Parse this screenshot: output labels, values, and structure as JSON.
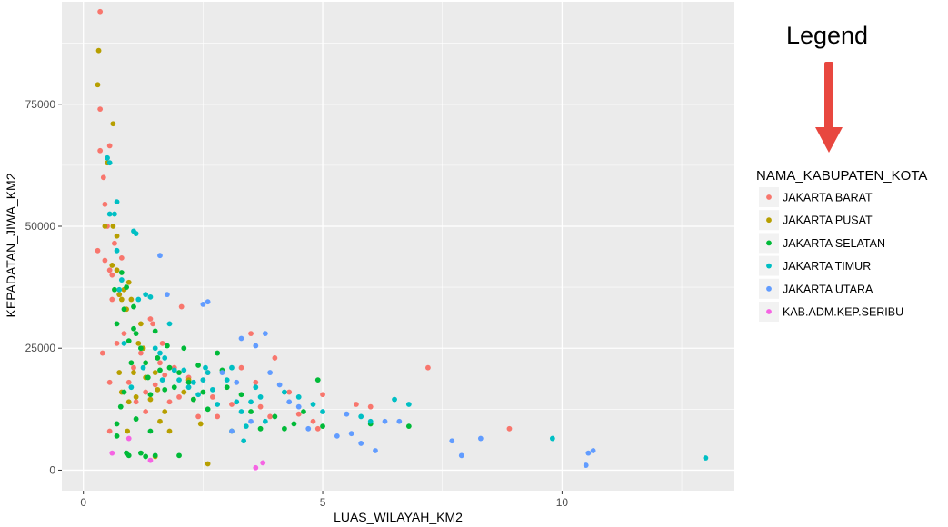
{
  "chart_data": {
    "type": "scatter",
    "title": "",
    "xlabel": "LUAS_WILAYAH_KM2",
    "ylabel": "KEPADATAN_JIWA_KM2",
    "xlim": [
      -0.45,
      13.6
    ],
    "ylim": [
      -4200,
      96000
    ],
    "x_ticks": [
      0,
      5,
      10
    ],
    "y_ticks": [
      0,
      25000,
      50000,
      75000
    ],
    "x_tick_labels": [
      "0",
      "5",
      "10"
    ],
    "y_tick_labels": [
      "0",
      "25000",
      "50000",
      "75000"
    ],
    "grid": true,
    "legend_title": "NAMA_KABUPATEN_KOTA",
    "legend_position": "right",
    "annotation": {
      "text": "Legend",
      "arrow_color": "#e8473f"
    },
    "series": [
      {
        "name": "JAKARTA BARAT",
        "color": "#F8766D",
        "points": [
          [
            0.35,
            94000
          ],
          [
            0.35,
            74000
          ],
          [
            0.35,
            65500
          ],
          [
            0.3,
            45000
          ],
          [
            0.42,
            60000
          ],
          [
            0.45,
            54500
          ],
          [
            0.55,
            66500
          ],
          [
            0.45,
            43000
          ],
          [
            0.5,
            50000
          ],
          [
            0.55,
            41000
          ],
          [
            0.6,
            35000
          ],
          [
            0.65,
            46500
          ],
          [
            0.6,
            40000
          ],
          [
            0.4,
            24000
          ],
          [
            0.55,
            18000
          ],
          [
            0.55,
            8000
          ],
          [
            0.75,
            36000
          ],
          [
            0.8,
            43500
          ],
          [
            0.85,
            28000
          ],
          [
            0.7,
            26000
          ],
          [
            0.95,
            18000
          ],
          [
            1.05,
            21000
          ],
          [
            1.2,
            24000
          ],
          [
            1.3,
            16000
          ],
          [
            1.4,
            31000
          ],
          [
            1.45,
            30000
          ],
          [
            1.5,
            17500
          ],
          [
            1.6,
            22000
          ],
          [
            1.65,
            26000
          ],
          [
            1.7,
            19500
          ],
          [
            1.8,
            14000
          ],
          [
            1.9,
            21000
          ],
          [
            2.0,
            15000
          ],
          [
            2.05,
            33500
          ],
          [
            2.2,
            19000
          ],
          [
            2.4,
            11000
          ],
          [
            2.6,
            20000
          ],
          [
            2.7,
            15000
          ],
          [
            2.8,
            11000
          ],
          [
            3.1,
            13500
          ],
          [
            3.3,
            21000
          ],
          [
            3.5,
            28000
          ],
          [
            3.6,
            18000
          ],
          [
            3.7,
            13000
          ],
          [
            3.9,
            11000
          ],
          [
            4.0,
            23000
          ],
          [
            4.3,
            16000
          ],
          [
            4.5,
            11500
          ],
          [
            4.8,
            10000
          ],
          [
            4.9,
            8500
          ],
          [
            5.0,
            15500
          ],
          [
            5.7,
            13500
          ],
          [
            6.0,
            13000
          ],
          [
            7.2,
            21000
          ],
          [
            8.9,
            8500
          ],
          [
            1.1,
            14000
          ],
          [
            1.3,
            12000
          ],
          [
            2.3,
            14500
          ]
        ]
      },
      {
        "name": "JAKARTA PUSAT",
        "color": "#B79F00",
        "points": [
          [
            0.32,
            86000
          ],
          [
            0.3,
            79000
          ],
          [
            0.62,
            71000
          ],
          [
            0.5,
            63000
          ],
          [
            0.45,
            50000
          ],
          [
            0.6,
            42000
          ],
          [
            0.62,
            50000
          ],
          [
            0.7,
            48000
          ],
          [
            0.7,
            41000
          ],
          [
            0.75,
            36000
          ],
          [
            0.8,
            35000
          ],
          [
            0.85,
            37000
          ],
          [
            0.9,
            33000
          ],
          [
            0.95,
            38500
          ],
          [
            1.0,
            35000
          ],
          [
            0.75,
            20000
          ],
          [
            0.8,
            16000
          ],
          [
            0.95,
            14000
          ],
          [
            1.05,
            20000
          ],
          [
            1.1,
            15000
          ],
          [
            1.15,
            26000
          ],
          [
            1.2,
            30000
          ],
          [
            1.25,
            25000
          ],
          [
            1.3,
            19000
          ],
          [
            1.4,
            14500
          ],
          [
            1.5,
            20000
          ],
          [
            1.55,
            16500
          ],
          [
            1.6,
            10000
          ],
          [
            1.7,
            12000
          ],
          [
            1.8,
            8000
          ],
          [
            2.1,
            16000
          ],
          [
            2.2,
            18500
          ],
          [
            2.45,
            9500
          ],
          [
            2.6,
            1300
          ],
          [
            1.5,
            2800
          ],
          [
            0.92,
            8000
          ]
        ]
      },
      {
        "name": "JAKARTA SELATAN",
        "color": "#00BA38",
        "points": [
          [
            0.65,
            37000
          ],
          [
            0.7,
            30000
          ],
          [
            0.8,
            40500
          ],
          [
            0.85,
            33000
          ],
          [
            0.9,
            37500
          ],
          [
            0.95,
            26500
          ],
          [
            1.0,
            22000
          ],
          [
            1.05,
            33500
          ],
          [
            1.1,
            28000
          ],
          [
            1.2,
            25000
          ],
          [
            1.3,
            22000
          ],
          [
            1.35,
            19000
          ],
          [
            1.4,
            15500
          ],
          [
            1.5,
            28500
          ],
          [
            1.55,
            23000
          ],
          [
            1.6,
            20500
          ],
          [
            1.7,
            16500
          ],
          [
            1.8,
            21000
          ],
          [
            1.9,
            17000
          ],
          [
            2.0,
            20000
          ],
          [
            2.1,
            25000
          ],
          [
            2.2,
            18000
          ],
          [
            2.3,
            14500
          ],
          [
            2.4,
            21500
          ],
          [
            2.5,
            16000
          ],
          [
            2.6,
            12500
          ],
          [
            2.8,
            24000
          ],
          [
            2.9,
            20500
          ],
          [
            3.0,
            17000
          ],
          [
            3.1,
            8000
          ],
          [
            3.3,
            15500
          ],
          [
            3.5,
            12000
          ],
          [
            3.7,
            8500
          ],
          [
            4.0,
            11000
          ],
          [
            4.2,
            8500
          ],
          [
            4.4,
            9500
          ],
          [
            4.6,
            12000
          ],
          [
            4.9,
            18500
          ],
          [
            5.0,
            9000
          ],
          [
            6.0,
            9500
          ],
          [
            6.8,
            9000
          ],
          [
            0.7,
            9500
          ],
          [
            0.85,
            16000
          ],
          [
            0.95,
            3000
          ],
          [
            1.3,
            2800
          ],
          [
            1.5,
            3000
          ],
          [
            2.0,
            3000
          ],
          [
            0.7,
            7000
          ],
          [
            1.2,
            3500
          ],
          [
            0.9,
            3500
          ],
          [
            1.1,
            10500
          ],
          [
            1.4,
            8000
          ],
          [
            0.78,
            13000
          ],
          [
            1.05,
            29000
          ],
          [
            1.75,
            25500
          ]
        ]
      },
      {
        "name": "JAKARTA TIMUR",
        "color": "#00BFC4",
        "points": [
          [
            0.5,
            64000
          ],
          [
            0.55,
            63000
          ],
          [
            0.55,
            52500
          ],
          [
            0.65,
            52500
          ],
          [
            0.7,
            55000
          ],
          [
            0.7,
            45000
          ],
          [
            0.75,
            37000
          ],
          [
            0.8,
            39000
          ],
          [
            0.85,
            26000
          ],
          [
            1.05,
            49000
          ],
          [
            1.1,
            48500
          ],
          [
            1.15,
            35000
          ],
          [
            1.3,
            36000
          ],
          [
            1.4,
            35500
          ],
          [
            1.5,
            25000
          ],
          [
            1.6,
            24000
          ],
          [
            1.7,
            23000
          ],
          [
            1.8,
            30000
          ],
          [
            1.9,
            20500
          ],
          [
            2.0,
            18500
          ],
          [
            2.1,
            20500
          ],
          [
            2.2,
            17000
          ],
          [
            2.3,
            18000
          ],
          [
            2.4,
            15500
          ],
          [
            2.5,
            18500
          ],
          [
            2.6,
            20000
          ],
          [
            2.7,
            16500
          ],
          [
            2.8,
            13500
          ],
          [
            3.0,
            18500
          ],
          [
            3.1,
            21000
          ],
          [
            3.2,
            14000
          ],
          [
            3.3,
            12000
          ],
          [
            3.4,
            9000
          ],
          [
            3.5,
            14000
          ],
          [
            3.6,
            17000
          ],
          [
            3.7,
            15000
          ],
          [
            3.8,
            10000
          ],
          [
            4.2,
            16000
          ],
          [
            4.5,
            15000
          ],
          [
            4.8,
            13500
          ],
          [
            5.0,
            12000
          ],
          [
            5.8,
            11000
          ],
          [
            6.0,
            10000
          ],
          [
            6.5,
            14500
          ],
          [
            6.8,
            13500
          ],
          [
            9.8,
            6500
          ],
          [
            13.0,
            2500
          ],
          [
            1.0,
            17000
          ],
          [
            1.25,
            21000
          ],
          [
            1.65,
            18500
          ],
          [
            2.55,
            21000
          ],
          [
            3.35,
            6000
          ]
        ]
      },
      {
        "name": "JAKARTA UTARA",
        "color": "#619CFF",
        "points": [
          [
            1.6,
            44000
          ],
          [
            1.75,
            36000
          ],
          [
            2.5,
            34000
          ],
          [
            2.6,
            34500
          ],
          [
            3.3,
            27000
          ],
          [
            3.8,
            28000
          ],
          [
            3.6,
            25500
          ],
          [
            2.9,
            20000
          ],
          [
            3.2,
            18000
          ],
          [
            3.5,
            10000
          ],
          [
            3.9,
            20000
          ],
          [
            4.1,
            17500
          ],
          [
            4.3,
            14000
          ],
          [
            4.5,
            13000
          ],
          [
            4.7,
            8500
          ],
          [
            5.3,
            7000
          ],
          [
            5.5,
            11500
          ],
          [
            5.6,
            7500
          ],
          [
            5.8,
            5500
          ],
          [
            6.1,
            4000
          ],
          [
            6.3,
            10000
          ],
          [
            6.6,
            10000
          ],
          [
            7.7,
            6000
          ],
          [
            7.9,
            3000
          ],
          [
            8.3,
            6500
          ],
          [
            10.5,
            1000
          ],
          [
            10.55,
            3500
          ],
          [
            10.65,
            4000
          ],
          [
            3.1,
            8000
          ]
        ]
      },
      {
        "name": "KAB.ADM.KEP.SERIBU",
        "color": "#F564E3",
        "points": [
          [
            0.6,
            3500
          ],
          [
            0.95,
            6500
          ],
          [
            1.4,
            2000
          ],
          [
            3.6,
            500
          ],
          [
            3.75,
            1500
          ]
        ]
      }
    ]
  }
}
